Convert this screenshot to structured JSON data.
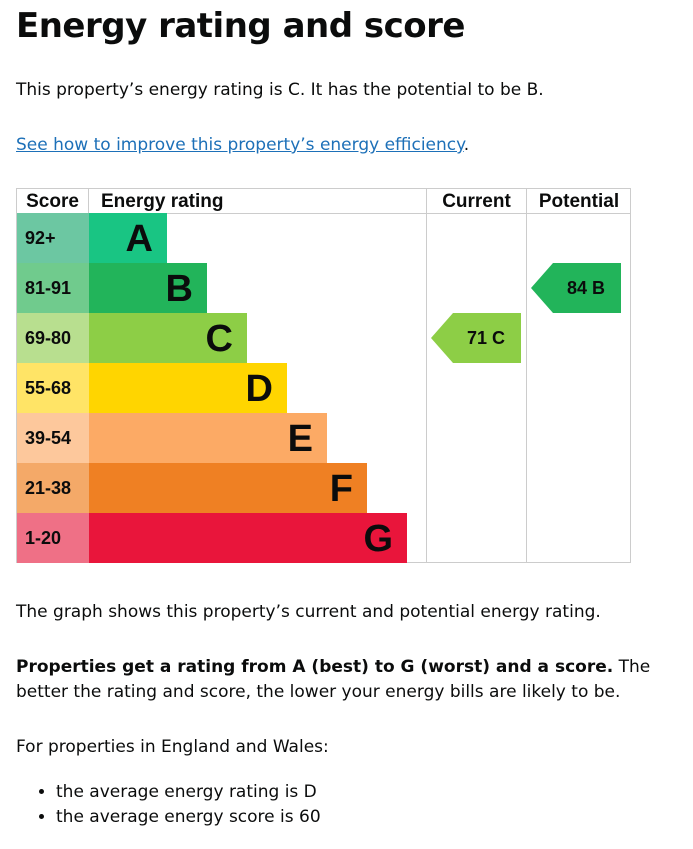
{
  "title": "Energy rating and score",
  "intro": "This property’s energy rating is C. It has the potential to be B.",
  "link": "See how to improve this property’s energy efficiency",
  "link_suffix": ".",
  "table": {
    "headers": {
      "score": "Score",
      "rating": "Energy rating",
      "current": "Current",
      "potential": "Potential"
    },
    "bands": [
      {
        "score": "92+",
        "letter": "A",
        "color": "#19c583",
        "score_color": "#6cc7a2"
      },
      {
        "score": "81-91",
        "letter": "B",
        "color": "#22b45a",
        "score_color": "#70cb8d"
      },
      {
        "score": "69-80",
        "letter": "C",
        "color": "#8dce46",
        "score_color": "#b8df8f"
      },
      {
        "score": "55-68",
        "letter": "D",
        "color": "#ffd500",
        "score_color": "#ffe466"
      },
      {
        "score": "39-54",
        "letter": "E",
        "color": "#fcaa65",
        "score_color": "#fdc89c"
      },
      {
        "score": "21-38",
        "letter": "F",
        "color": "#ef8023",
        "score_color": "#f4a968"
      },
      {
        "score": "1-20",
        "letter": "G",
        "color": "#e9153b",
        "score_color": "#ef7086"
      }
    ],
    "current": {
      "label": "71 C",
      "score": 71,
      "band": "C"
    },
    "potential": {
      "label": "84  B",
      "score": 84,
      "band": "B"
    }
  },
  "graph_note": "The graph shows this property’s current and potential energy rating.",
  "rating_bold": "Properties get a rating from A (best) to G (worst) and a score.",
  "rating_rest": " The better the rating and score, the lower your energy bills are likely to be.",
  "england_wales": "For properties in England and Wales:",
  "bullets": [
    "the average energy rating is D",
    "the average energy score is 60"
  ]
}
